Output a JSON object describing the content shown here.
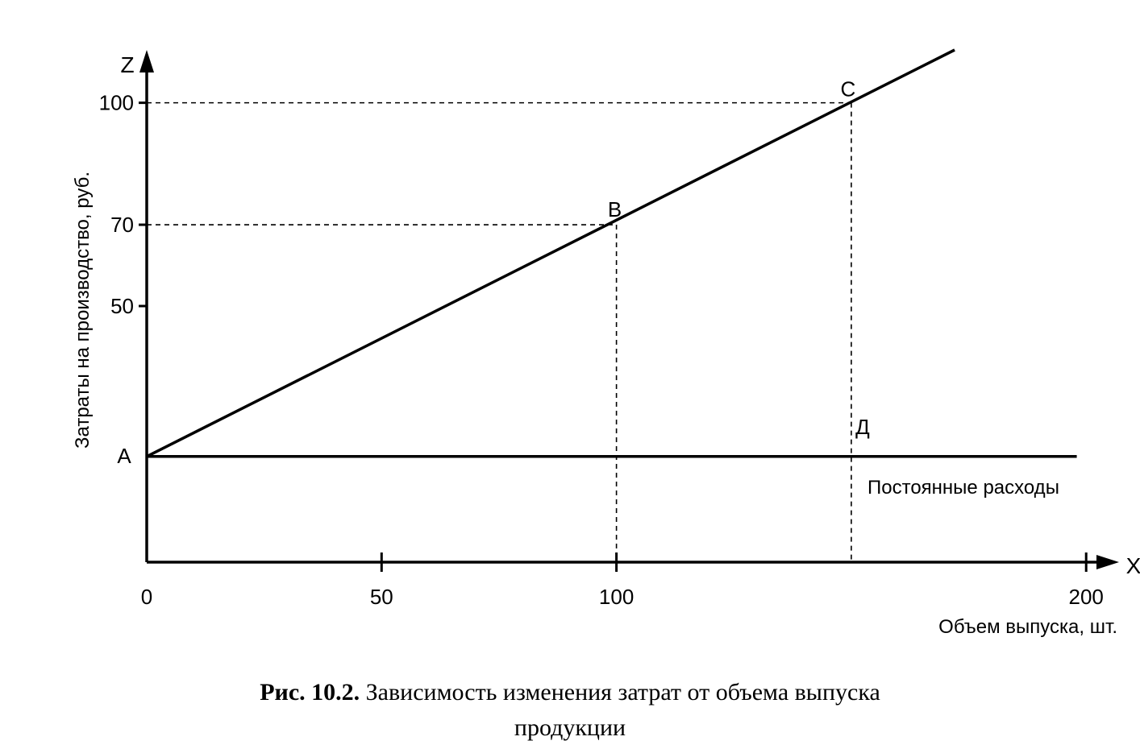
{
  "chart_data": {
    "type": "line",
    "y_axis_letter": "Z",
    "x_axis_letter": "X",
    "ylabel": "Затраты на производство, руб.",
    "xlabel": "Объем выпуска, шт.",
    "x_ticks": [
      0,
      50,
      100,
      200
    ],
    "x_tick_labels": [
      "0",
      "50",
      "100",
      "200"
    ],
    "y_ticks": [
      50,
      70,
      100
    ],
    "y_tick_labels": [
      "50",
      "70",
      "100"
    ],
    "xlim": [
      0,
      207
    ],
    "ylim": [
      -13,
      113
    ],
    "series": [
      {
        "points": [
          [
            0,
            13
          ],
          [
            172,
            113
          ]
        ]
      },
      {
        "name": "Постоянные расходы",
        "points": [
          [
            0,
            13
          ],
          [
            198,
            13
          ]
        ]
      }
    ],
    "points": [
      {
        "label": "A",
        "x": 0,
        "y": 13
      },
      {
        "label": "B",
        "x": 100,
        "y": 70
      },
      {
        "label": "C",
        "x": 150,
        "y": 98.8
      },
      {
        "label": "Д",
        "x": 150,
        "y": 13
      }
    ],
    "guides": [
      {
        "x": 100,
        "y": 70
      },
      {
        "x": 150,
        "y": 100
      }
    ],
    "grid": false
  },
  "caption": {
    "number": "Рис. 10.2.",
    "line1": "Зависимость изменения затрат от объема выпуска",
    "line2": "продукции"
  }
}
